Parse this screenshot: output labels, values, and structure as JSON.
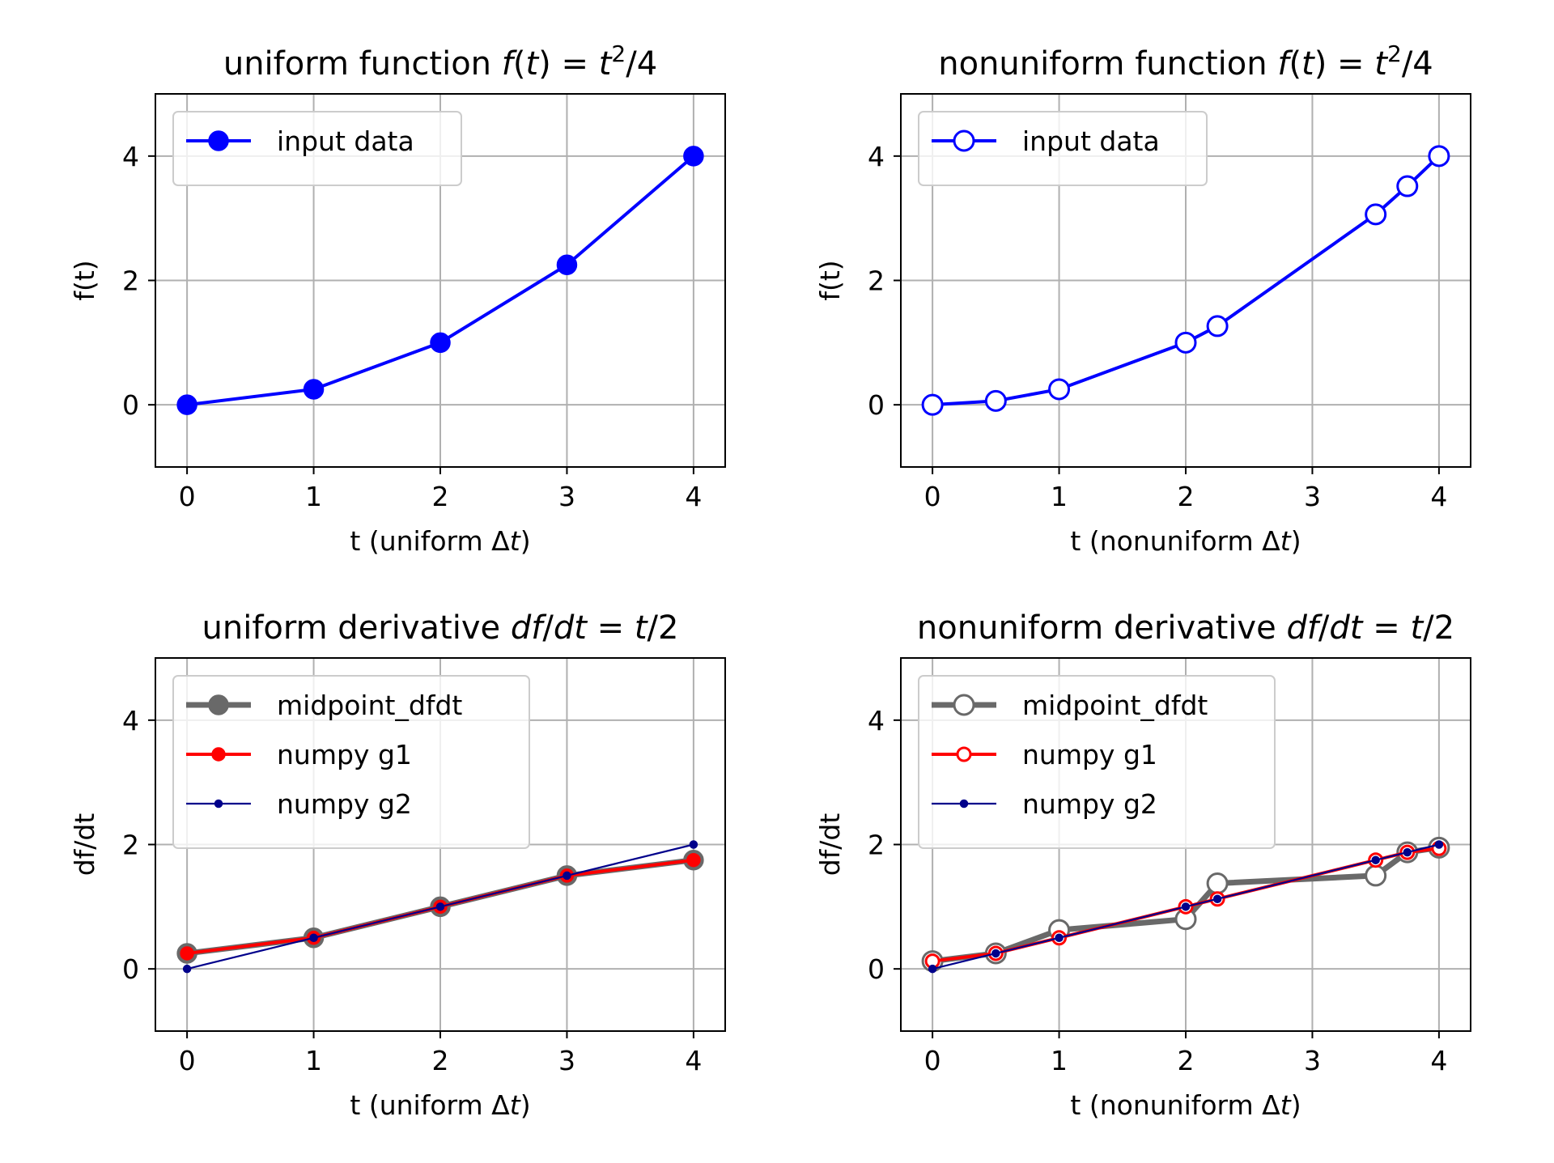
{
  "chart_data": [
    {
      "type": "line",
      "title_text": "uniform function ",
      "title_math": [
        {
          "t": "f",
          "i": true
        },
        {
          "t": "("
        },
        {
          "t": "t",
          "i": true
        },
        {
          "t": ") = "
        },
        {
          "t": "t",
          "i": true
        },
        {
          "t": "2",
          "sup": true
        },
        {
          "t": "/4"
        }
      ],
      "xlabel_text": "t (uniform Δ",
      "xlabel_italic": "t",
      "xlabel_tail": ")",
      "ylabel": "f(t)",
      "xlim": [
        -0.25,
        4.25
      ],
      "ylim": [
        -1,
        5
      ],
      "xticks": [
        0,
        1,
        2,
        3,
        4
      ],
      "yticks": [
        0,
        2,
        4
      ],
      "grid": true,
      "legend_position": "upper left",
      "series": [
        {
          "name": "input data",
          "color": "#0000ff",
          "line_width": "normal",
          "marker": "filled-circle",
          "marker_size": "large",
          "x": [
            0,
            1,
            2,
            3,
            4
          ],
          "y": [
            0,
            0.25,
            1,
            2.25,
            4
          ]
        }
      ]
    },
    {
      "type": "line",
      "title_text": "nonuniform function ",
      "title_math": [
        {
          "t": "f",
          "i": true
        },
        {
          "t": "("
        },
        {
          "t": "t",
          "i": true
        },
        {
          "t": ") = "
        },
        {
          "t": "t",
          "i": true
        },
        {
          "t": "2",
          "sup": true
        },
        {
          "t": "/4"
        }
      ],
      "xlabel_text": "t (nonuniform Δ",
      "xlabel_italic": "t",
      "xlabel_tail": ")",
      "ylabel": "f(t)",
      "xlim": [
        -0.25,
        4.25
      ],
      "ylim": [
        -1,
        5
      ],
      "xticks": [
        0,
        1,
        2,
        3,
        4
      ],
      "yticks": [
        0,
        2,
        4
      ],
      "grid": true,
      "legend_position": "upper left",
      "series": [
        {
          "name": "input data",
          "color": "#0000ff",
          "line_width": "normal",
          "marker": "open-circle",
          "marker_size": "large",
          "x": [
            0,
            0.5,
            1,
            2,
            2.25,
            3.5,
            3.75,
            4
          ],
          "y": [
            0,
            0.0625,
            0.25,
            1,
            1.265625,
            3.0625,
            3.515625,
            4
          ]
        }
      ]
    },
    {
      "type": "line",
      "title_text": "uniform derivative ",
      "title_math": [
        {
          "t": "df",
          "i": true
        },
        {
          "t": "/"
        },
        {
          "t": "dt",
          "i": true
        },
        {
          "t": " = "
        },
        {
          "t": "t",
          "i": true
        },
        {
          "t": "/2"
        }
      ],
      "xlabel_text": "t (uniform Δ",
      "xlabel_italic": "t",
      "xlabel_tail": ")",
      "ylabel": "df/dt",
      "xlim": [
        -0.25,
        4.25
      ],
      "ylim": [
        -1,
        5
      ],
      "xticks": [
        0,
        1,
        2,
        3,
        4
      ],
      "yticks": [
        0,
        2,
        4
      ],
      "grid": true,
      "legend_position": "upper left",
      "series": [
        {
          "name": "midpoint_dfdt",
          "color": "#696969",
          "line_width": "thick",
          "marker": "filled-circle",
          "marker_size": "large",
          "x": [
            0,
            1,
            2,
            3,
            4
          ],
          "y": [
            0.25,
            0.5,
            1,
            1.5,
            1.75
          ]
        },
        {
          "name": "numpy g1",
          "color": "#ff0000",
          "line_width": "normal",
          "marker": "filled-circle",
          "marker_size": "medium",
          "x": [
            0,
            1,
            2,
            3,
            4
          ],
          "y": [
            0.25,
            0.5,
            1,
            1.5,
            1.75
          ]
        },
        {
          "name": "numpy g2",
          "color": "#00008b",
          "line_width": "thin",
          "marker": "filled-circle",
          "marker_size": "small",
          "x": [
            0,
            1,
            2,
            3,
            4
          ],
          "y": [
            0,
            0.5,
            1,
            1.5,
            2
          ]
        }
      ]
    },
    {
      "type": "line",
      "title_text": "nonuniform derivative ",
      "title_math": [
        {
          "t": "df",
          "i": true
        },
        {
          "t": "/"
        },
        {
          "t": "dt",
          "i": true
        },
        {
          "t": " = "
        },
        {
          "t": "t",
          "i": true
        },
        {
          "t": "/2"
        }
      ],
      "xlabel_text": "t (nonuniform Δ",
      "xlabel_italic": "t",
      "xlabel_tail": ")",
      "ylabel": "df/dt",
      "xlim": [
        -0.25,
        4.25
      ],
      "ylim": [
        -1,
        5
      ],
      "xticks": [
        0,
        1,
        2,
        3,
        4
      ],
      "yticks": [
        0,
        2,
        4
      ],
      "grid": true,
      "legend_position": "upper left",
      "series": [
        {
          "name": "midpoint_dfdt",
          "color": "#696969",
          "line_width": "thick",
          "marker": "open-circle",
          "marker_size": "large",
          "x": [
            0,
            0.5,
            1,
            2,
            2.25,
            3.5,
            3.75,
            4
          ],
          "y": [
            0.125,
            0.25,
            0.625,
            0.8,
            1.375,
            1.5,
            1.875,
            1.95
          ]
        },
        {
          "name": "numpy g1",
          "color": "#ff0000",
          "line_width": "normal",
          "marker": "open-circle",
          "marker_size": "medium",
          "x": [
            0,
            0.5,
            1,
            2,
            2.25,
            3.5,
            3.75,
            4
          ],
          "y": [
            0.125,
            0.25,
            0.5,
            1,
            1.125,
            1.75,
            1.875,
            1.9375
          ]
        },
        {
          "name": "numpy g2",
          "color": "#00008b",
          "line_width": "thin",
          "marker": "filled-circle",
          "marker_size": "small",
          "x": [
            0,
            0.5,
            1,
            2,
            2.25,
            3.5,
            3.75,
            4
          ],
          "y": [
            0,
            0.25,
            0.5,
            1,
            1.125,
            1.75,
            1.875,
            2
          ]
        }
      ]
    }
  ]
}
